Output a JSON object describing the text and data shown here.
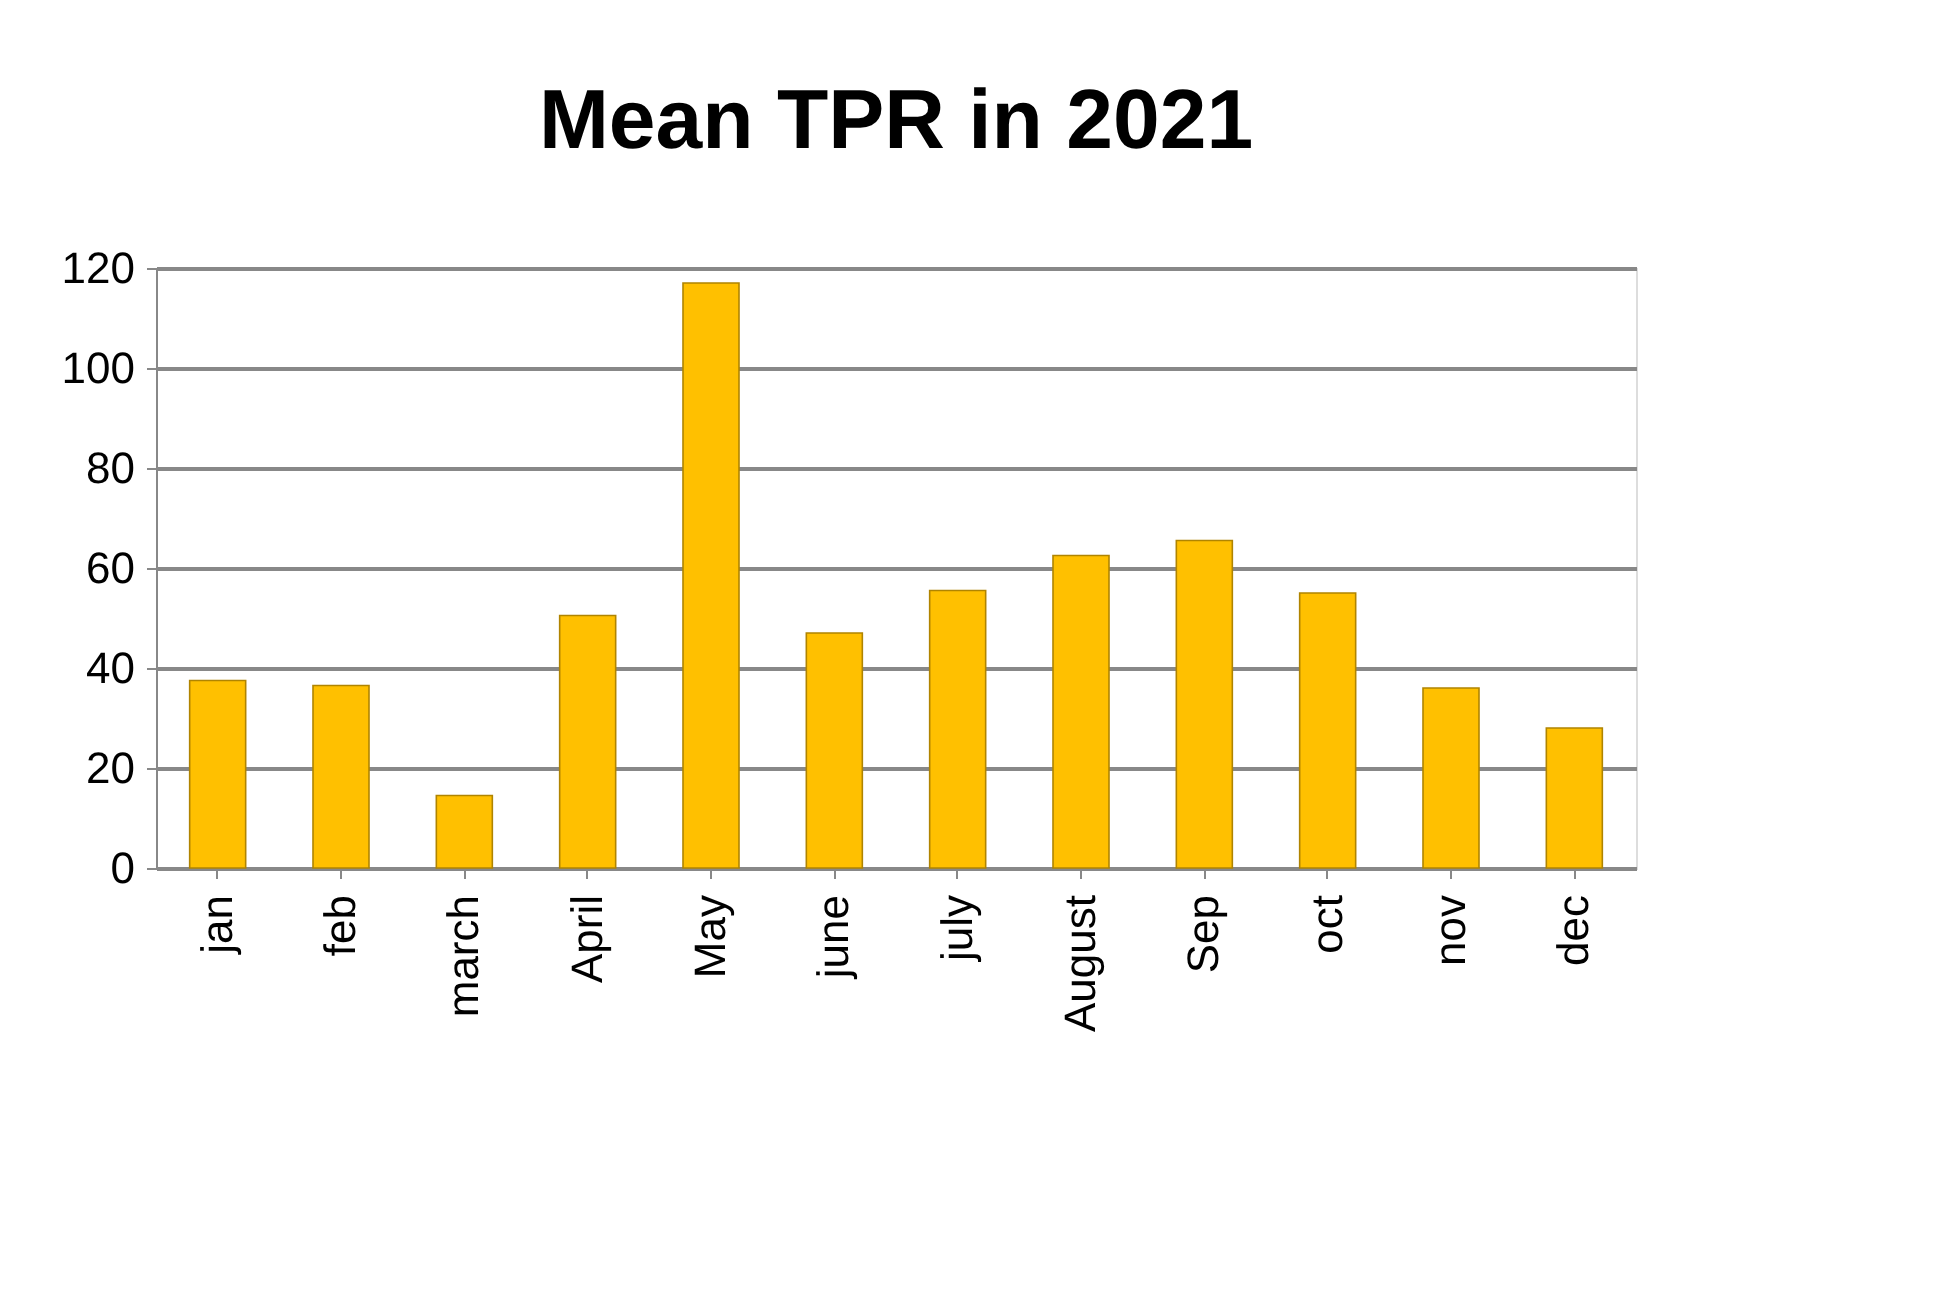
{
  "chart_data": {
    "type": "bar",
    "title": "Mean TPR in 2021",
    "categories": [
      "jan",
      "feb",
      "march",
      "April",
      "May",
      "june",
      "july",
      "August",
      "Sep",
      "oct",
      "nov",
      "dec"
    ],
    "values": [
      37.5,
      36.5,
      14.5,
      50.5,
      117,
      47,
      55.5,
      62.5,
      65.5,
      55,
      36,
      28
    ],
    "color": "#ffc000",
    "ylim": [
      0,
      120
    ],
    "yticks": [
      0,
      20,
      40,
      60,
      80,
      100,
      120
    ],
    "grid": "y"
  }
}
